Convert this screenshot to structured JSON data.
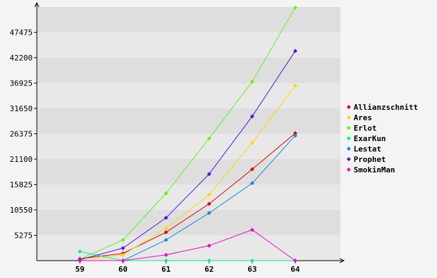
{
  "chart_data": {
    "type": "line",
    "categories": [
      "59",
      "60",
      "61",
      "62",
      "63",
      "64"
    ],
    "y_ticks": [
      5275,
      10550,
      15825,
      21100,
      26375,
      31650,
      36925,
      42200,
      47475
    ],
    "ylim": [
      0,
      52750
    ],
    "grid": "horizontal bands",
    "legend_position": "right",
    "series": [
      {
        "name": "Allianzschnitt",
        "color": "#e00000",
        "values": [
          400,
          1500,
          5900,
          11800,
          19000,
          26500
        ]
      },
      {
        "name": "Ares",
        "color": "#ffd700",
        "values": [
          100,
          1200,
          6700,
          13700,
          24500,
          36400
        ]
      },
      {
        "name": "Erlot",
        "color": "#66ee22",
        "values": [
          300,
          4300,
          14000,
          25400,
          37200,
          52600
        ]
      },
      {
        "name": "ExarKun",
        "color": "#00ee88",
        "values": [
          1900,
          0,
          0,
          0,
          0,
          0
        ]
      },
      {
        "name": "Lestat",
        "color": "#1188dd",
        "values": [
          0,
          0,
          4300,
          9900,
          16100,
          26000
        ]
      },
      {
        "name": "Prophet",
        "color": "#5511dd",
        "values": [
          200,
          2600,
          8900,
          18000,
          30000,
          43600
        ]
      },
      {
        "name": "SmokinMan",
        "color": "#ee00cc",
        "values": [
          0,
          0,
          1200,
          3100,
          6400,
          0
        ]
      }
    ]
  }
}
